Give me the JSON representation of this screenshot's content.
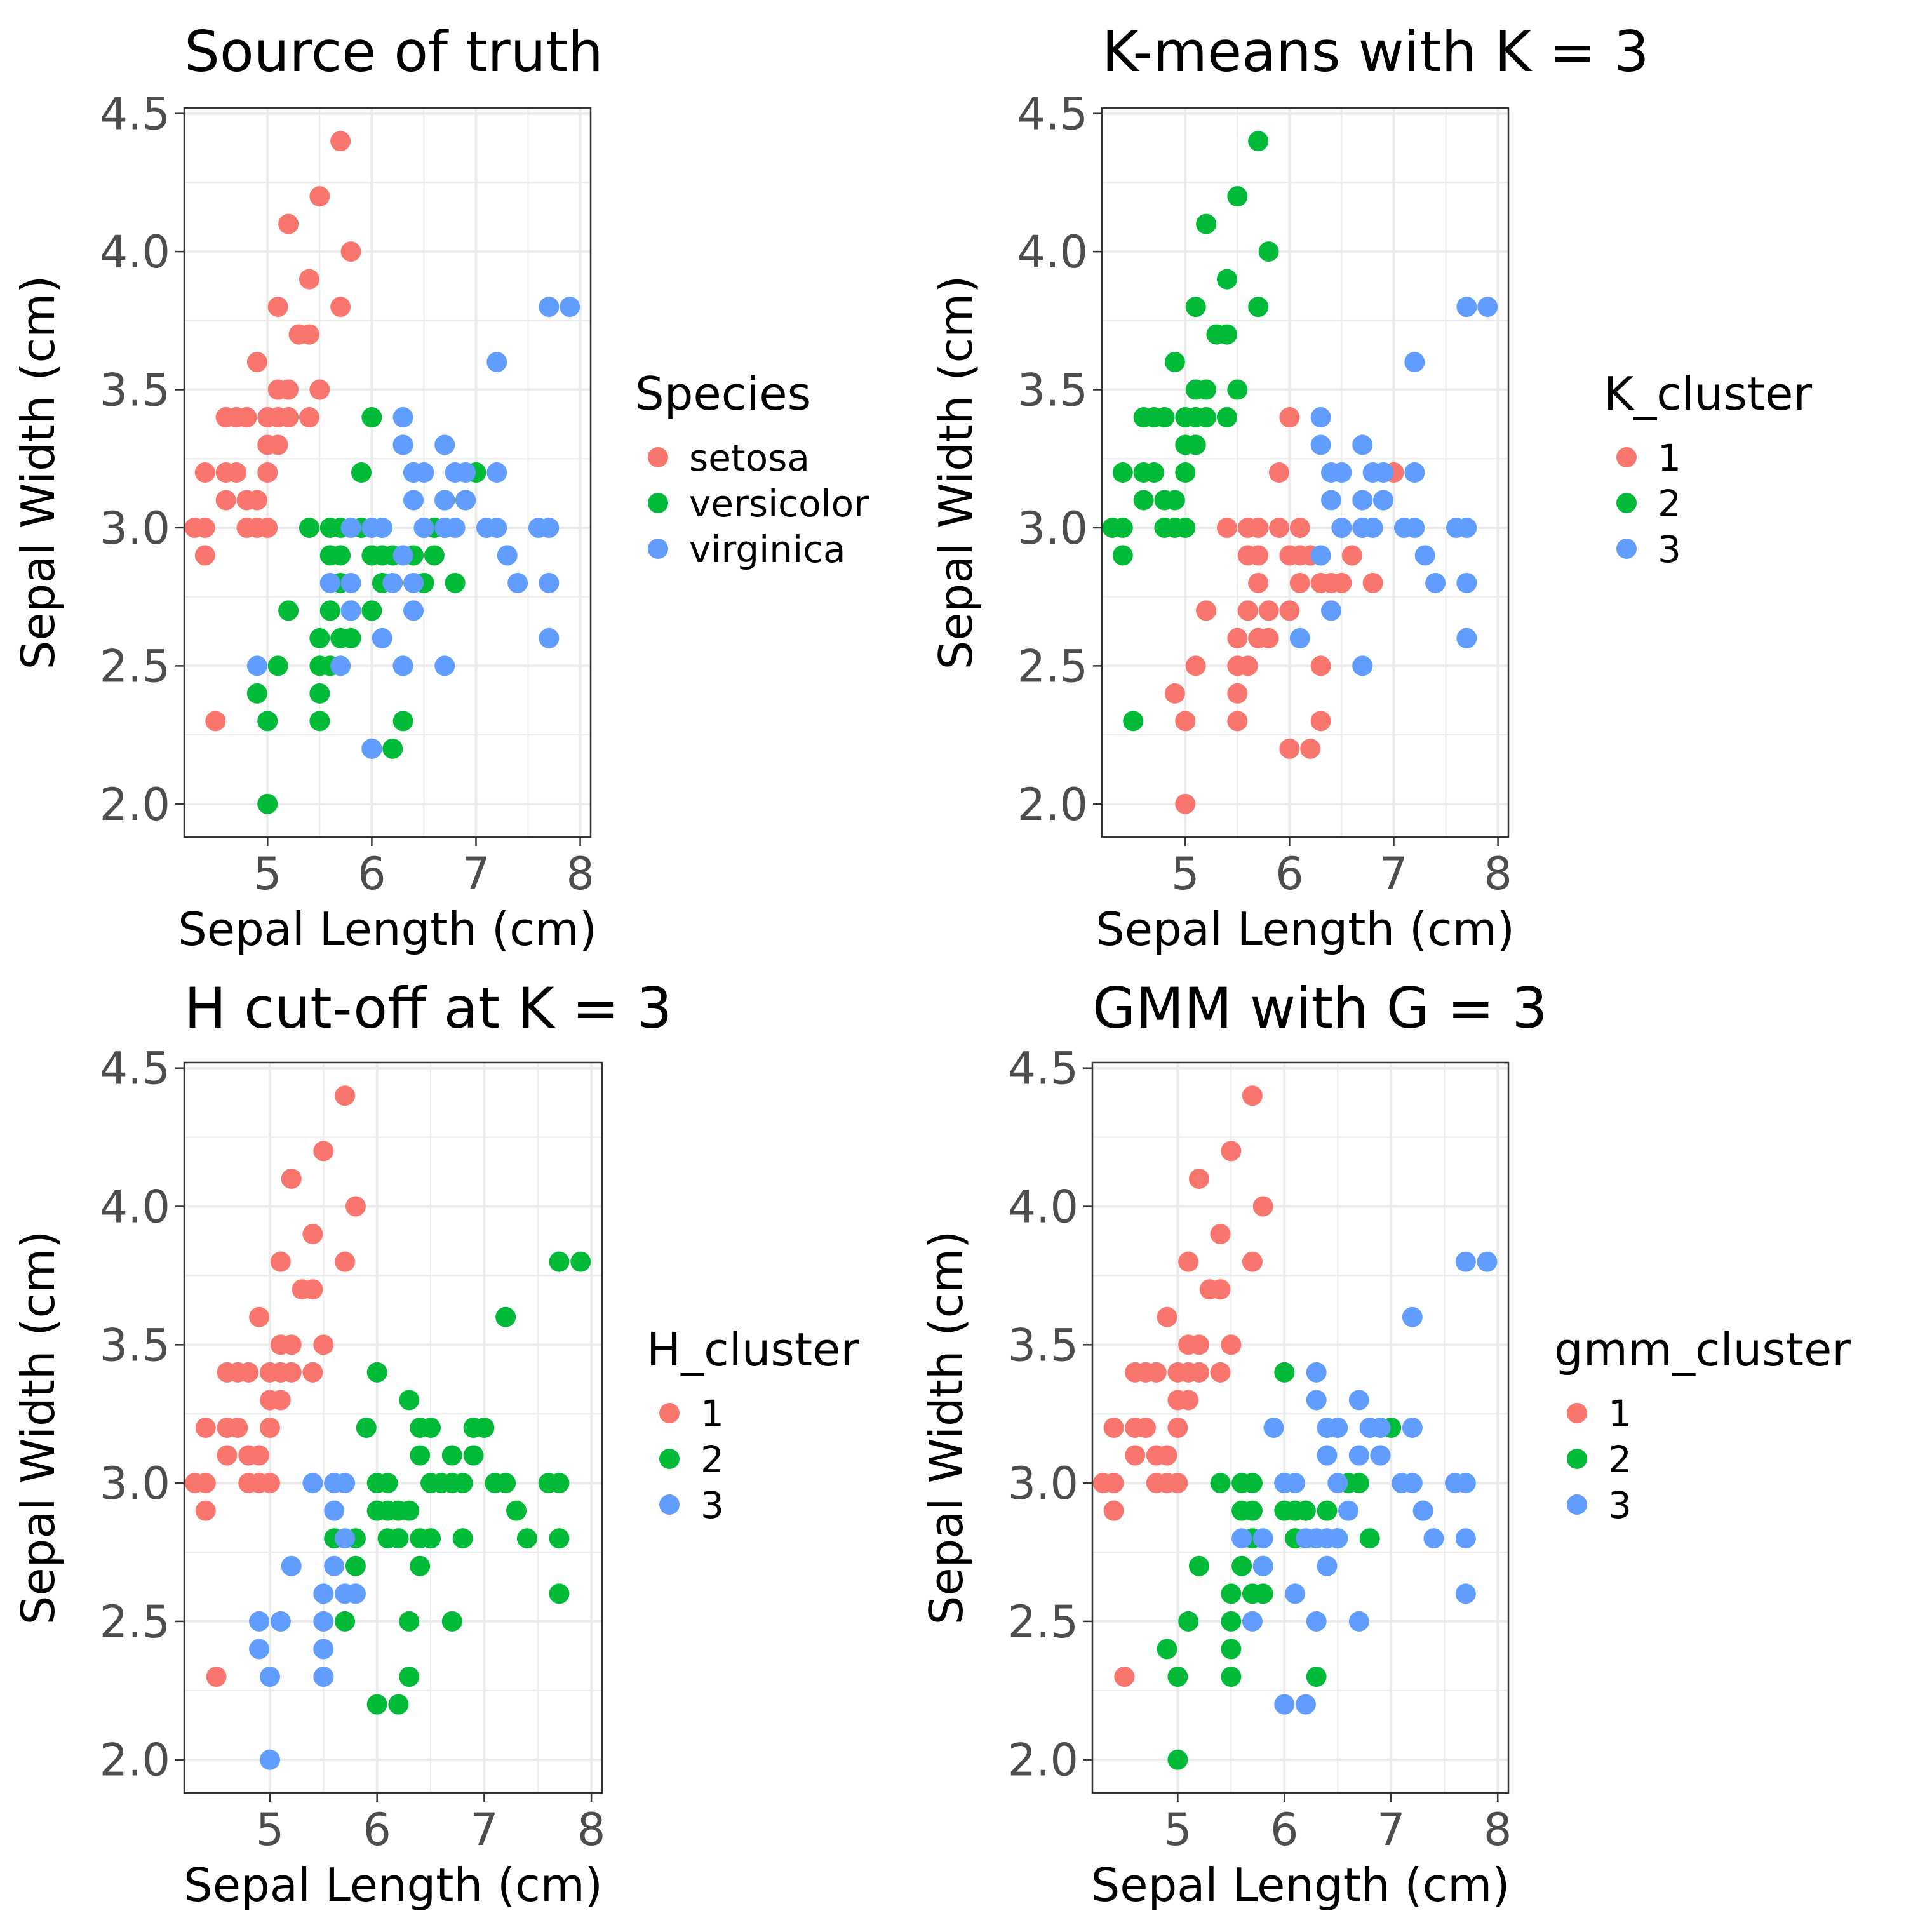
{
  "colors": {
    "c1": "#f8766d",
    "c2": "#00ba38",
    "c3": "#619cff",
    "grid": "#ebebeb",
    "frame": "#333333",
    "tick_text": "#4d4d4d"
  },
  "chart_data": [
    {
      "type": "scatter",
      "title": "Source of truth",
      "xlabel": "Sepal Length (cm)",
      "ylabel": "Sepal Width (cm)",
      "xlim": [
        4.2,
        8.1
      ],
      "ylim": [
        1.88,
        4.52
      ],
      "xticks": [
        "5",
        "6",
        "7",
        "8"
      ],
      "yticks": [
        "2.0",
        "2.5",
        "3.0",
        "3.5",
        "4.0",
        "4.5"
      ],
      "grid": true,
      "legend": {
        "title": "Species",
        "position": "right",
        "labels": [
          "setosa",
          "versicolor",
          "virginica"
        ]
      },
      "series": [
        {
          "name": "setosa",
          "color": "#f8766d",
          "x": [
            4.3,
            4.4,
            4.4,
            4.4,
            4.5,
            4.6,
            4.6,
            4.6,
            4.7,
            4.7,
            4.8,
            4.8,
            4.8,
            4.9,
            4.9,
            4.9,
            5.0,
            5.0,
            5.0,
            5.0,
            5.1,
            5.1,
            5.1,
            5.1,
            5.2,
            5.2,
            5.2,
            5.3,
            5.4,
            5.4,
            5.4,
            5.5,
            5.5,
            5.7,
            5.7,
            5.8
          ],
          "y": [
            3.0,
            2.9,
            3.0,
            3.2,
            2.3,
            3.1,
            3.2,
            3.4,
            3.2,
            3.4,
            3.0,
            3.1,
            3.4,
            3.0,
            3.1,
            3.6,
            3.0,
            3.2,
            3.3,
            3.4,
            3.3,
            3.5,
            3.8,
            3.4,
            3.4,
            3.5,
            4.1,
            3.7,
            3.4,
            3.7,
            3.9,
            3.5,
            4.2,
            3.8,
            4.4,
            4.0
          ]
        },
        {
          "name": "versicolor",
          "color": "#00ba38",
          "x": [
            4.9,
            5.0,
            5.0,
            5.1,
            5.2,
            5.4,
            5.5,
            5.5,
            5.5,
            5.5,
            5.6,
            5.6,
            5.6,
            5.6,
            5.7,
            5.7,
            5.7,
            5.7,
            5.8,
            5.8,
            5.9,
            5.9,
            6.0,
            6.0,
            6.0,
            6.0,
            6.1,
            6.1,
            6.1,
            6.2,
            6.2,
            6.3,
            6.3,
            6.3,
            6.4,
            6.4,
            6.5,
            6.6,
            6.6,
            6.7,
            6.7,
            6.7,
            6.8,
            6.9,
            7.0
          ],
          "y": [
            2.4,
            2.0,
            2.3,
            2.5,
            2.7,
            3.0,
            2.3,
            2.4,
            2.5,
            2.6,
            2.7,
            2.9,
            3.0,
            2.5,
            2.6,
            2.8,
            2.9,
            3.0,
            2.6,
            2.7,
            3.0,
            3.2,
            2.2,
            2.7,
            2.9,
            3.4,
            2.8,
            2.9,
            3.0,
            2.2,
            2.9,
            2.3,
            2.5,
            3.3,
            2.9,
            3.2,
            2.8,
            2.9,
            3.0,
            3.0,
            3.1,
            3.1,
            2.8,
            3.1,
            3.2
          ]
        },
        {
          "name": "virginica",
          "color": "#619cff",
          "x": [
            4.9,
            5.6,
            5.7,
            5.8,
            5.8,
            5.8,
            6.0,
            6.0,
            6.1,
            6.1,
            6.2,
            6.3,
            6.3,
            6.3,
            6.3,
            6.4,
            6.4,
            6.4,
            6.4,
            6.5,
            6.5,
            6.5,
            6.7,
            6.7,
            6.7,
            6.7,
            6.8,
            6.8,
            6.9,
            6.9,
            6.9,
            7.1,
            7.2,
            7.2,
            7.2,
            7.3,
            7.4,
            7.6,
            7.7,
            7.7,
            7.7,
            7.7,
            7.9
          ],
          "y": [
            2.5,
            2.8,
            2.5,
            2.7,
            2.8,
            3.0,
            2.2,
            3.0,
            2.6,
            3.0,
            2.8,
            2.5,
            2.9,
            3.3,
            3.4,
            2.7,
            2.8,
            3.1,
            3.2,
            3.0,
            3.2,
            3.0,
            3.0,
            3.1,
            3.3,
            2.5,
            3.0,
            3.2,
            3.1,
            3.2,
            3.1,
            3.0,
            3.0,
            3.2,
            3.6,
            2.9,
            2.8,
            3.0,
            2.6,
            2.8,
            3.0,
            3.8,
            3.8
          ]
        }
      ]
    },
    {
      "type": "scatter",
      "title": "K-means with K = 3",
      "xlabel": "Sepal Length (cm)",
      "ylabel": "Sepal Width (cm)",
      "xlim": [
        4.2,
        8.1
      ],
      "ylim": [
        1.88,
        4.52
      ],
      "xticks": [
        "5",
        "6",
        "7",
        "8"
      ],
      "yticks": [
        "2.0",
        "2.5",
        "3.0",
        "3.5",
        "4.0",
        "4.5"
      ],
      "grid": true,
      "legend": {
        "title": "K_cluster",
        "position": "right",
        "labels": [
          "1",
          "2",
          "3"
        ]
      },
      "series": [
        {
          "name": "1",
          "color": "#f8766d",
          "x": [
            4.9,
            5.0,
            5.0,
            5.1,
            5.2,
            5.4,
            5.5,
            5.5,
            5.5,
            5.5,
            5.6,
            5.6,
            5.6,
            5.6,
            5.7,
            5.7,
            5.7,
            5.7,
            5.8,
            5.8,
            5.9,
            5.9,
            6.0,
            6.0,
            6.0,
            6.0,
            6.1,
            6.1,
            6.1,
            6.2,
            6.2,
            6.3,
            6.3,
            6.3,
            6.4,
            6.5,
            6.6,
            6.7,
            6.8,
            7.0
          ],
          "y": [
            2.4,
            2.0,
            2.3,
            2.5,
            2.7,
            3.0,
            2.3,
            2.4,
            2.5,
            2.6,
            2.7,
            2.9,
            3.0,
            2.5,
            2.6,
            2.8,
            2.9,
            3.0,
            2.6,
            2.7,
            3.0,
            3.2,
            2.2,
            2.7,
            2.9,
            3.4,
            2.8,
            2.9,
            3.0,
            2.2,
            2.9,
            2.3,
            2.5,
            2.8,
            2.8,
            2.8,
            2.9,
            3.0,
            2.8,
            3.2
          ]
        },
        {
          "name": "2",
          "color": "#00ba38",
          "x": [
            4.3,
            4.4,
            4.4,
            4.4,
            4.5,
            4.6,
            4.6,
            4.6,
            4.7,
            4.7,
            4.8,
            4.8,
            4.8,
            4.9,
            4.9,
            4.9,
            5.0,
            5.0,
            5.0,
            5.0,
            5.1,
            5.1,
            5.1,
            5.1,
            5.2,
            5.2,
            5.2,
            5.3,
            5.4,
            5.4,
            5.4,
            5.5,
            5.5,
            5.7,
            5.7,
            5.8
          ],
          "y": [
            3.0,
            2.9,
            3.0,
            3.2,
            2.3,
            3.1,
            3.2,
            3.4,
            3.2,
            3.4,
            3.0,
            3.1,
            3.4,
            3.0,
            3.1,
            3.6,
            3.0,
            3.2,
            3.3,
            3.4,
            3.3,
            3.5,
            3.8,
            3.4,
            3.4,
            3.5,
            4.1,
            3.7,
            3.4,
            3.7,
            3.9,
            3.5,
            4.2,
            3.8,
            4.4,
            4.0
          ]
        },
        {
          "name": "3",
          "color": "#619cff",
          "x": [
            6.1,
            6.3,
            6.3,
            6.3,
            6.4,
            6.4,
            6.4,
            6.5,
            6.5,
            6.5,
            6.7,
            6.7,
            6.7,
            6.7,
            6.8,
            6.8,
            6.9,
            6.9,
            6.9,
            7.1,
            7.2,
            7.2,
            7.2,
            7.3,
            7.4,
            7.6,
            7.7,
            7.7,
            7.7,
            7.7,
            7.9
          ],
          "y": [
            2.6,
            2.9,
            3.3,
            3.4,
            2.7,
            3.1,
            3.2,
            3.0,
            3.2,
            3.0,
            3.0,
            3.1,
            3.3,
            2.5,
            3.0,
            3.2,
            3.1,
            3.2,
            3.1,
            3.0,
            3.0,
            3.2,
            3.6,
            2.9,
            2.8,
            3.0,
            2.6,
            2.8,
            3.0,
            3.8,
            3.8
          ]
        }
      ]
    },
    {
      "type": "scatter",
      "title": "H cut-off at K = 3",
      "xlabel": "Sepal Length (cm)",
      "ylabel": "Sepal Width (cm)",
      "xlim": [
        4.2,
        8.1
      ],
      "ylim": [
        1.88,
        4.52
      ],
      "xticks": [
        "5",
        "6",
        "7",
        "8"
      ],
      "yticks": [
        "2.0",
        "2.5",
        "3.0",
        "3.5",
        "4.0",
        "4.5"
      ],
      "grid": true,
      "legend": {
        "title": "H_cluster",
        "position": "right",
        "labels": [
          "1",
          "2",
          "3"
        ]
      },
      "series": [
        {
          "name": "1",
          "color": "#f8766d",
          "x": [
            4.3,
            4.4,
            4.4,
            4.4,
            4.5,
            4.6,
            4.6,
            4.6,
            4.7,
            4.7,
            4.8,
            4.8,
            4.8,
            4.9,
            4.9,
            4.9,
            5.0,
            5.0,
            5.0,
            5.0,
            5.1,
            5.1,
            5.1,
            5.1,
            5.2,
            5.2,
            5.2,
            5.3,
            5.4,
            5.4,
            5.4,
            5.5,
            5.5,
            5.7,
            5.7,
            5.8
          ],
          "y": [
            3.0,
            2.9,
            3.0,
            3.2,
            2.3,
            3.1,
            3.2,
            3.4,
            3.2,
            3.4,
            3.0,
            3.1,
            3.4,
            3.0,
            3.1,
            3.6,
            3.0,
            3.2,
            3.3,
            3.4,
            3.3,
            3.5,
            3.8,
            3.4,
            3.4,
            3.5,
            4.1,
            3.7,
            3.4,
            3.7,
            3.9,
            3.5,
            4.2,
            3.8,
            4.4,
            4.0
          ]
        },
        {
          "name": "2",
          "color": "#00ba38",
          "x": [
            5.6,
            5.7,
            5.8,
            5.8,
            5.9,
            6.0,
            6.0,
            6.0,
            6.0,
            6.1,
            6.1,
            6.1,
            6.2,
            6.2,
            6.2,
            6.3,
            6.3,
            6.3,
            6.3,
            6.4,
            6.4,
            6.4,
            6.4,
            6.5,
            6.5,
            6.5,
            6.6,
            6.7,
            6.7,
            6.7,
            6.8,
            6.8,
            6.9,
            6.9,
            7.0,
            7.1,
            7.2,
            7.2,
            7.3,
            7.4,
            7.6,
            7.7,
            7.7,
            7.7,
            7.7,
            7.9
          ],
          "y": [
            2.8,
            2.5,
            2.7,
            2.8,
            3.2,
            2.2,
            2.9,
            3.0,
            3.4,
            2.8,
            2.9,
            3.0,
            2.2,
            2.8,
            2.9,
            2.3,
            2.5,
            2.9,
            3.3,
            2.7,
            2.8,
            3.1,
            3.2,
            2.8,
            3.0,
            3.2,
            3.0,
            2.5,
            3.0,
            3.1,
            2.8,
            3.0,
            3.1,
            3.2,
            3.2,
            3.0,
            3.0,
            3.6,
            2.9,
            2.8,
            3.0,
            2.6,
            2.8,
            3.0,
            3.8,
            3.8
          ]
        },
        {
          "name": "3",
          "color": "#619cff",
          "x": [
            4.9,
            4.9,
            5.0,
            5.0,
            5.1,
            5.2,
            5.4,
            5.5,
            5.5,
            5.5,
            5.5,
            5.6,
            5.6,
            5.6,
            5.7,
            5.7,
            5.7,
            5.8
          ],
          "y": [
            2.4,
            2.5,
            2.0,
            2.3,
            2.5,
            2.7,
            3.0,
            2.3,
            2.4,
            2.5,
            2.6,
            2.7,
            2.9,
            3.0,
            2.6,
            2.8,
            3.0,
            2.6
          ]
        }
      ]
    },
    {
      "type": "scatter",
      "title": "GMM with G = 3",
      "xlabel": "Sepal Length (cm)",
      "ylabel": "Sepal Width (cm)",
      "xlim": [
        4.2,
        8.1
      ],
      "ylim": [
        1.88,
        4.52
      ],
      "xticks": [
        "5",
        "6",
        "7",
        "8"
      ],
      "yticks": [
        "2.0",
        "2.5",
        "3.0",
        "3.5",
        "4.0",
        "4.5"
      ],
      "grid": true,
      "legend": {
        "title": "gmm_cluster",
        "position": "right",
        "labels": [
          "1",
          "2",
          "3"
        ]
      },
      "series": [
        {
          "name": "1",
          "color": "#f8766d",
          "x": [
            4.3,
            4.4,
            4.4,
            4.4,
            4.5,
            4.6,
            4.6,
            4.6,
            4.7,
            4.7,
            4.8,
            4.8,
            4.8,
            4.9,
            4.9,
            4.9,
            5.0,
            5.0,
            5.0,
            5.0,
            5.1,
            5.1,
            5.1,
            5.1,
            5.2,
            5.2,
            5.2,
            5.3,
            5.4,
            5.4,
            5.4,
            5.5,
            5.5,
            5.7,
            5.7,
            5.8
          ],
          "y": [
            3.0,
            2.9,
            3.0,
            3.2,
            2.3,
            3.1,
            3.2,
            3.4,
            3.2,
            3.4,
            3.0,
            3.1,
            3.4,
            3.0,
            3.1,
            3.6,
            3.0,
            3.2,
            3.3,
            3.4,
            3.3,
            3.5,
            3.8,
            3.4,
            3.4,
            3.5,
            4.1,
            3.7,
            3.4,
            3.7,
            3.9,
            3.5,
            4.2,
            3.8,
            4.4,
            4.0
          ]
        },
        {
          "name": "2",
          "color": "#00ba38",
          "x": [
            4.9,
            5.0,
            5.0,
            5.1,
            5.2,
            5.4,
            5.5,
            5.5,
            5.5,
            5.5,
            5.6,
            5.6,
            5.6,
            5.7,
            5.7,
            5.7,
            5.7,
            5.8,
            5.8,
            6.0,
            6.0,
            6.0,
            6.1,
            6.1,
            6.2,
            6.3,
            6.4,
            6.5,
            6.6,
            6.7,
            6.8,
            7.0
          ],
          "y": [
            2.4,
            2.0,
            2.3,
            2.5,
            2.7,
            3.0,
            2.3,
            2.4,
            2.5,
            2.6,
            2.7,
            2.9,
            3.0,
            2.6,
            2.8,
            2.9,
            3.0,
            2.6,
            2.7,
            2.9,
            3.0,
            3.4,
            2.8,
            2.9,
            2.9,
            2.3,
            2.9,
            2.8,
            3.0,
            3.0,
            2.8,
            3.2
          ]
        },
        {
          "name": "3",
          "color": "#619cff",
          "x": [
            5.6,
            5.7,
            5.8,
            5.8,
            5.9,
            6.0,
            6.0,
            6.1,
            6.1,
            6.2,
            6.2,
            6.3,
            6.3,
            6.3,
            6.3,
            6.4,
            6.4,
            6.4,
            6.4,
            6.5,
            6.5,
            6.5,
            6.6,
            6.7,
            6.7,
            6.7,
            6.7,
            6.8,
            6.9,
            6.9,
            6.9,
            7.1,
            7.2,
            7.2,
            7.2,
            7.3,
            7.4,
            7.6,
            7.7,
            7.7,
            7.7,
            7.7,
            7.9
          ],
          "y": [
            2.8,
            2.5,
            2.7,
            2.8,
            3.2,
            2.2,
            3.0,
            2.6,
            3.0,
            2.2,
            2.8,
            2.5,
            2.8,
            3.3,
            3.4,
            2.7,
            2.8,
            3.1,
            3.2,
            2.8,
            3.0,
            3.2,
            2.9,
            2.5,
            3.1,
            3.1,
            3.3,
            3.2,
            3.1,
            3.2,
            3.1,
            3.0,
            3.0,
            3.2,
            3.6,
            2.9,
            2.8,
            3.0,
            2.6,
            2.8,
            3.0,
            3.8,
            3.8
          ]
        }
      ]
    }
  ]
}
